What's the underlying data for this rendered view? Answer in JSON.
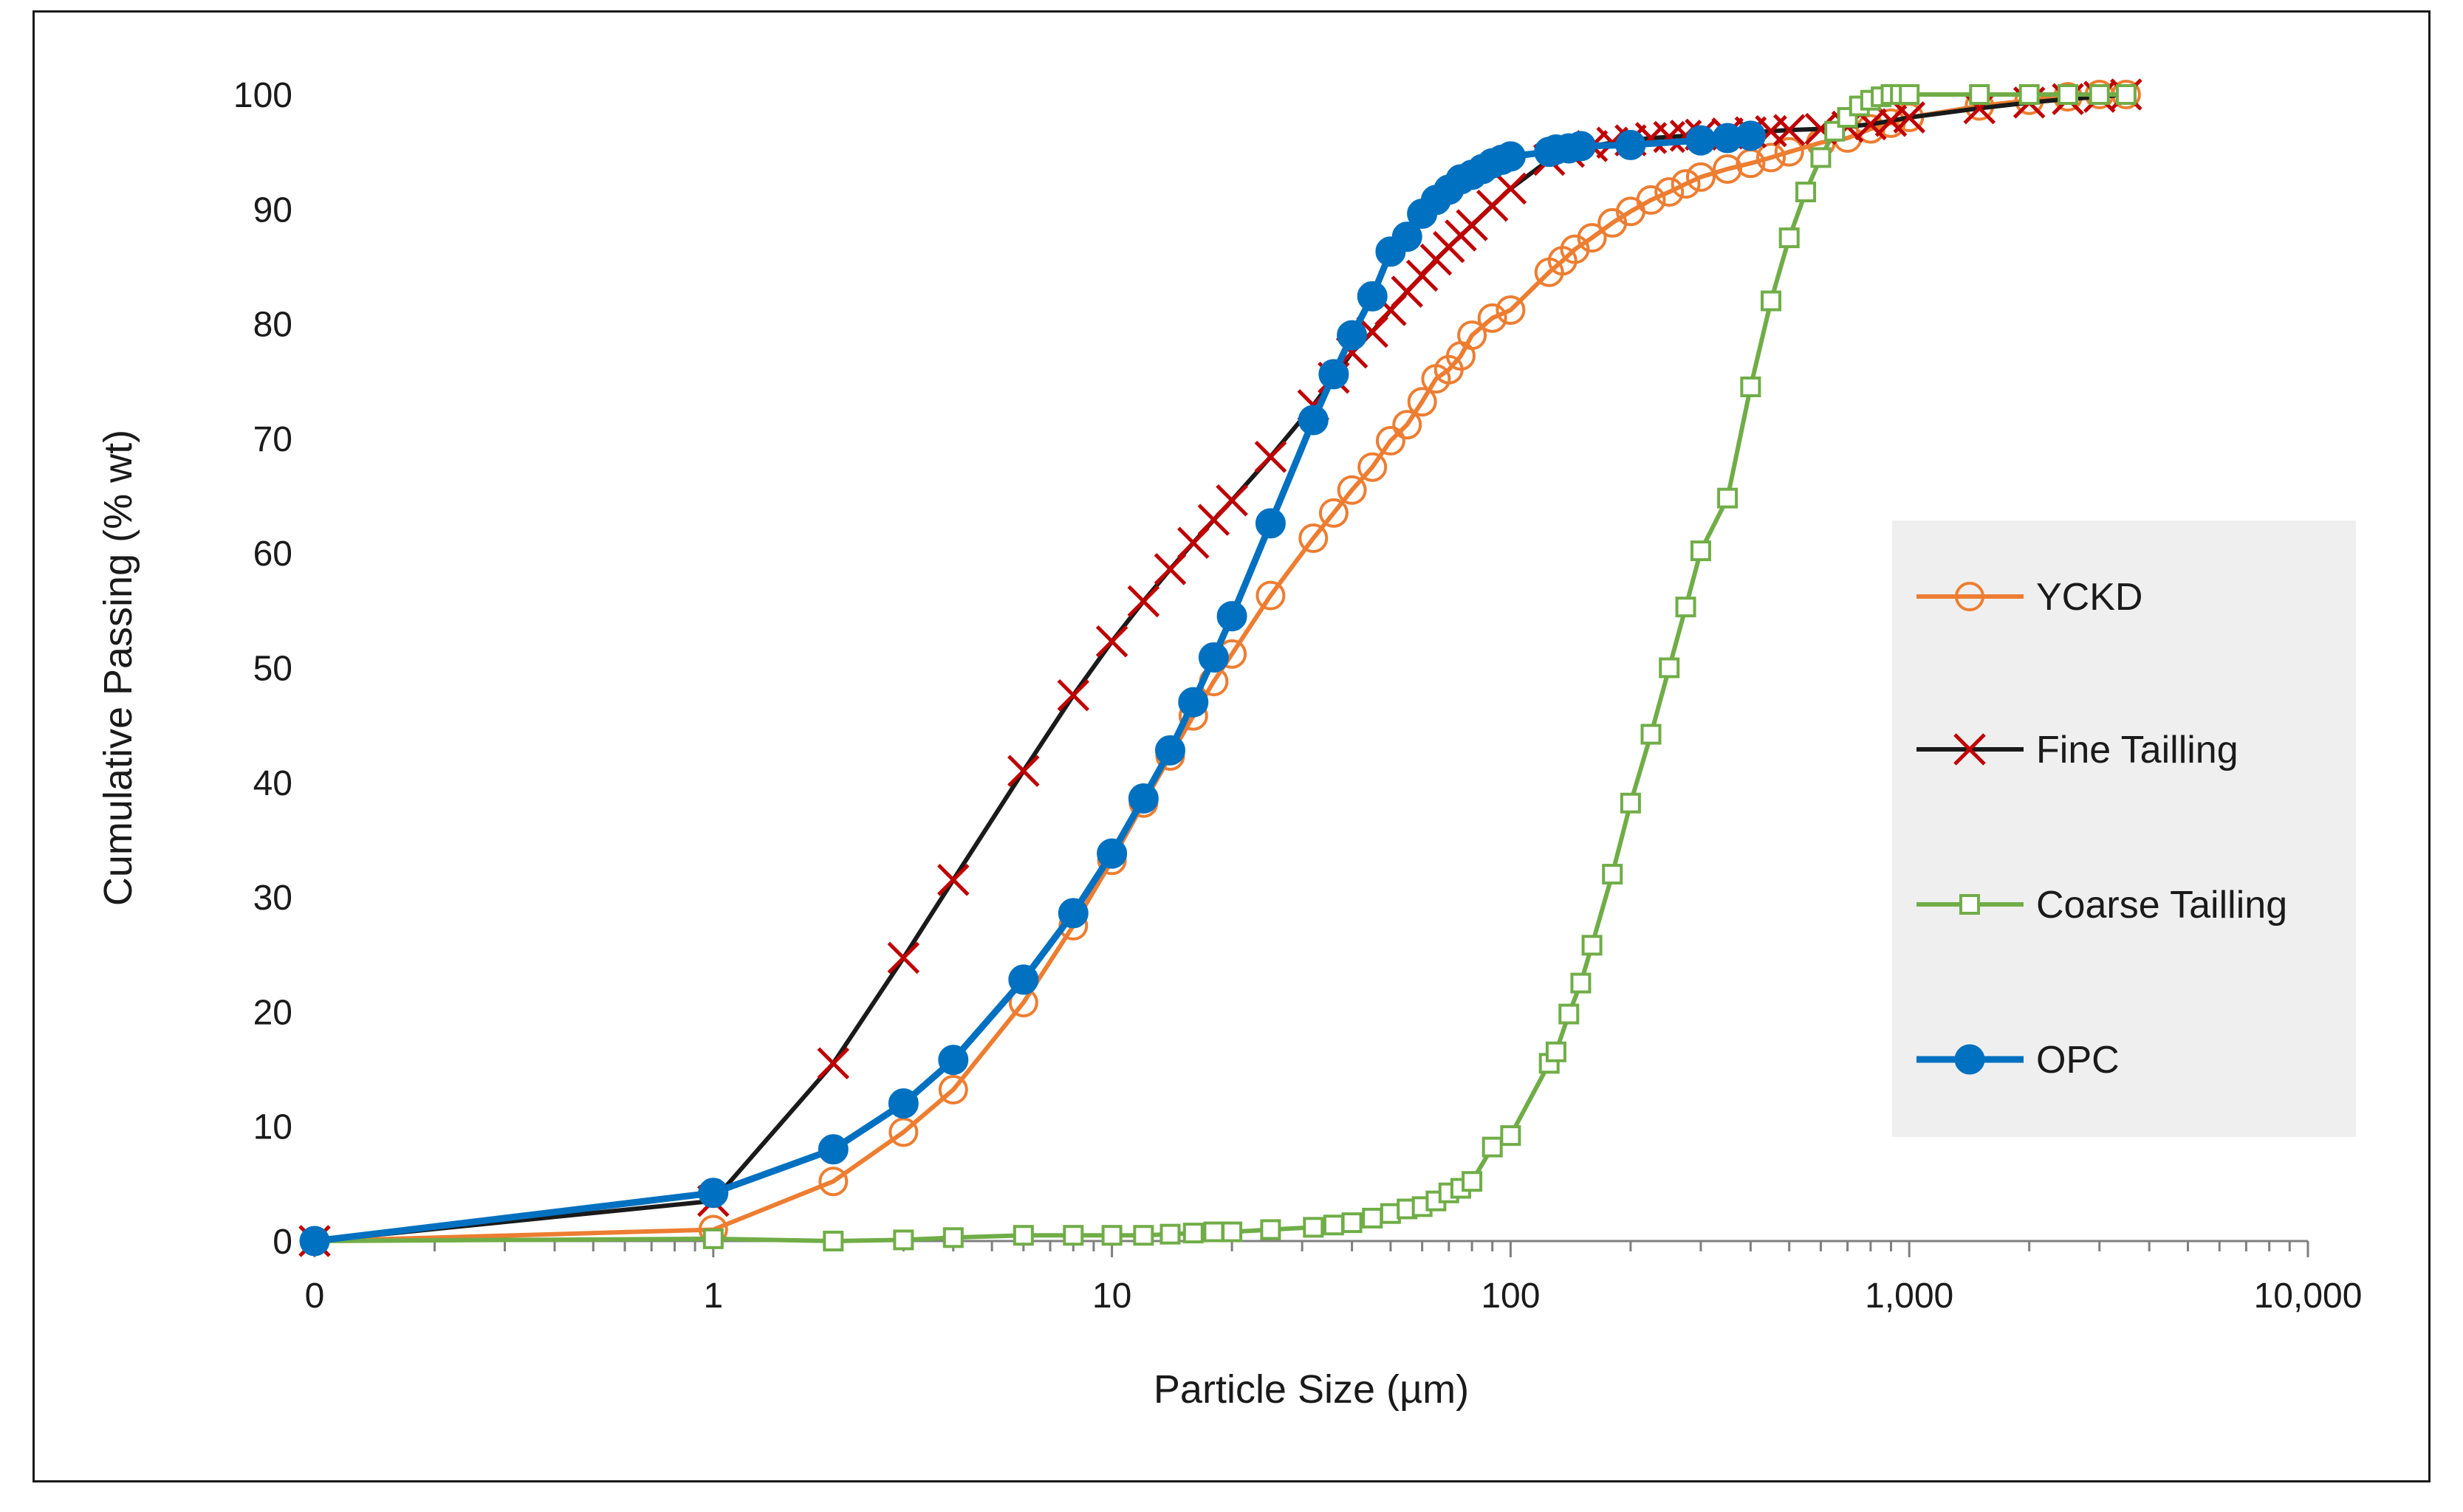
{
  "chart_data": {
    "type": "line",
    "title": "",
    "xlabel": "Particle Size (µm)",
    "ylabel": "Cumulative Passing (% wt)",
    "xscale": "log",
    "xlim": [
      0.1,
      10000
    ],
    "ylim": [
      0,
      100
    ],
    "x_tick_labels": [
      "0",
      "1",
      "10",
      "100",
      "1,000",
      "10,000"
    ],
    "y_tick_labels": [
      "0",
      "10",
      "20",
      "30",
      "40",
      "50",
      "60",
      "70",
      "80",
      "90",
      "100"
    ],
    "legend_position": "right",
    "colors": {
      "ycKD": "#ED7D31",
      "fine": "#C00000",
      "fine_line": "#1a1a1a",
      "coarse": "#70AD47",
      "opc": "#0070C0",
      "legend_bg": "#EFEFEF"
    },
    "series": [
      {
        "name": "YCKD",
        "marker": "circle-open",
        "x": [
          0.1,
          1,
          2,
          3,
          4,
          6,
          8,
          10,
          12,
          14,
          16,
          18,
          20,
          25,
          32,
          36,
          40,
          45,
          50,
          55,
          60,
          65,
          70,
          75,
          80,
          90,
          100,
          125,
          135,
          145,
          160,
          180,
          200,
          225,
          250,
          275,
          300,
          350,
          400,
          450,
          500,
          600,
          700,
          800,
          900,
          1000,
          1500,
          2000,
          2500,
          3000,
          3500
        ],
        "y": [
          0,
          1,
          5.2,
          9.5,
          13.2,
          20.8,
          27.5,
          33.2,
          38.2,
          42.3,
          45.8,
          48.8,
          51.2,
          56.3,
          61.3,
          63.5,
          65.5,
          67.5,
          69.8,
          71.2,
          73.2,
          75.2,
          76.0,
          77.2,
          79.0,
          80.5,
          81.2,
          84.5,
          85.5,
          86.5,
          87.5,
          88.8,
          89.8,
          90.8,
          91.5,
          92.2,
          92.8,
          93.5,
          94.0,
          94.5,
          95.0,
          95.8,
          96.2,
          97.0,
          97.5,
          98.0,
          99.0,
          99.5,
          99.8,
          100,
          100
        ]
      },
      {
        "name": "Fine Tailling",
        "marker": "x",
        "x": [
          0.1,
          1,
          2,
          3,
          4,
          6,
          8,
          10,
          12,
          14,
          16,
          18,
          20,
          25,
          32,
          36,
          40,
          45,
          50,
          55,
          60,
          65,
          70,
          75,
          80,
          90,
          100,
          125,
          140,
          160,
          180,
          200,
          225,
          250,
          275,
          300,
          350,
          400,
          450,
          500,
          600,
          700,
          800,
          900,
          1000,
          1500,
          2000,
          2500,
          3000,
          3500
        ],
        "y": [
          0,
          3.5,
          15.5,
          24.7,
          31.5,
          41.0,
          47.6,
          52.3,
          55.8,
          58.6,
          60.9,
          62.9,
          64.6,
          68.4,
          72.9,
          75.3,
          77.5,
          79.3,
          81.2,
          82.8,
          84.2,
          85.6,
          86.7,
          87.7,
          88.6,
          90.3,
          91.8,
          94.3,
          95.0,
          95.5,
          95.8,
          96.0,
          96.2,
          96.3,
          96.4,
          96.5,
          96.6,
          96.7,
          96.8,
          96.9,
          97.0,
          97.2,
          97.4,
          97.7,
          98.0,
          98.8,
          99.3,
          99.6,
          99.8,
          100
        ]
      },
      {
        "name": "Coarse Tailling",
        "marker": "square-open",
        "x": [
          0.1,
          1,
          2,
          3,
          4,
          6,
          8,
          10,
          12,
          14,
          16,
          18,
          20,
          25,
          32,
          36,
          40,
          45,
          50,
          55,
          60,
          65,
          70,
          75,
          80,
          90,
          100,
          125,
          130,
          140,
          150,
          160,
          180,
          200,
          225,
          250,
          275,
          300,
          350,
          400,
          450,
          500,
          550,
          600,
          650,
          700,
          750,
          800,
          850,
          900,
          950,
          1000,
          1500,
          2000,
          2500,
          3000,
          3500
        ],
        "y": [
          0,
          0.2,
          0,
          0.1,
          0.3,
          0.5,
          0.5,
          0.5,
          0.5,
          0.6,
          0.7,
          0.8,
          0.8,
          1.0,
          1.2,
          1.4,
          1.6,
          2.0,
          2.4,
          2.8,
          3.0,
          3.5,
          4.2,
          4.6,
          5.2,
          8.2,
          9.2,
          15.5,
          16.5,
          19.8,
          22.5,
          25.8,
          32.0,
          38.2,
          44.2,
          50.0,
          55.3,
          60.2,
          64.8,
          74.5,
          82.0,
          87.5,
          91.5,
          94.5,
          96.8,
          98.0,
          99.0,
          99.5,
          99.8,
          100,
          100,
          100,
          100,
          100,
          100,
          100,
          100
        ]
      },
      {
        "name": "OPC",
        "marker": "circle-filled",
        "x": [
          0.1,
          1,
          2,
          3,
          4,
          6,
          8,
          10,
          12,
          14,
          16,
          18,
          20,
          25,
          32,
          36,
          40,
          45,
          50,
          55,
          60,
          65,
          70,
          75,
          80,
          85,
          90,
          95,
          100,
          125,
          130,
          140,
          150,
          200,
          300,
          350,
          400
        ],
        "y": [
          0,
          4.2,
          8.0,
          12.0,
          15.8,
          22.8,
          28.6,
          33.8,
          38.6,
          42.8,
          47.0,
          50.9,
          54.5,
          62.6,
          71.6,
          75.6,
          79.0,
          82.4,
          86.3,
          87.6,
          89.6,
          90.8,
          91.7,
          92.6,
          93.0,
          93.5,
          94.0,
          94.3,
          94.6,
          95.0,
          95.2,
          95.3,
          95.5,
          95.6,
          96.0,
          96.2,
          96.4
        ]
      }
    ]
  }
}
